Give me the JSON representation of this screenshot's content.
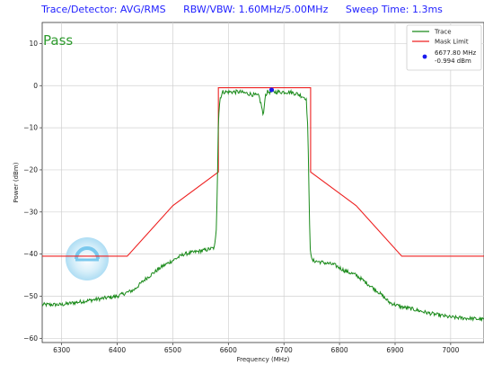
{
  "header": {
    "trace_detector": "Trace/Detector: AVG/RMS",
    "rbw_vbw": "RBW/VBW: 1.60MHz/5.00MHz",
    "sweep_time": "Sweep Time: 1.3ms"
  },
  "status": {
    "verdict": "Pass"
  },
  "colors": {
    "trace": "#1a8a1a",
    "mask": "#ee2222",
    "marker": "#1a1aee",
    "header_text": "#1f1fff",
    "pass_text": "#2e9b2e"
  },
  "chart_data": {
    "type": "line",
    "xlabel": "Frequency (MHz)",
    "ylabel": "Power (dBm)",
    "xlim": [
      6265,
      7060
    ],
    "ylim": [
      -61,
      15
    ],
    "x_ticks": [
      6300,
      6400,
      6500,
      6600,
      6700,
      6800,
      6900,
      7000
    ],
    "y_ticks": [
      10,
      0,
      -10,
      -20,
      -30,
      -40,
      -50,
      -60
    ],
    "grid": true,
    "legend_position": "top-right",
    "series": [
      {
        "name": "Trace",
        "x": [
          6265,
          6300,
          6350,
          6400,
          6430,
          6450,
          6480,
          6500,
          6520,
          6540,
          6560,
          6575,
          6578,
          6580,
          6582,
          6585,
          6590,
          6600,
          6620,
          6640,
          6655,
          6660,
          6663,
          6666,
          6670,
          6690,
          6710,
          6725,
          6740,
          6743,
          6745,
          6747,
          6750,
          6770,
          6790,
          6810,
          6830,
          6850,
          6870,
          6890,
          6910,
          6930,
          6960,
          7000,
          7060
        ],
        "y": [
          -52,
          -52,
          -51,
          -50,
          -48.5,
          -46,
          -43,
          -41.5,
          -40,
          -39.5,
          -39,
          -38.5,
          -35,
          -25,
          -8,
          -3,
          -1.5,
          -1.5,
          -1.5,
          -2,
          -2.5,
          -5,
          -7.5,
          -2.5,
          -1.5,
          -1.5,
          -1.5,
          -2,
          -3,
          -10,
          -25,
          -38,
          -41.5,
          -42,
          -42.5,
          -44,
          -45,
          -47,
          -49,
          -51.5,
          -52.5,
          -53,
          -54,
          -55,
          -55.5
        ]
      },
      {
        "name": "Mask Limit",
        "x": [
          6265,
          6418,
          6500,
          6582,
          6582,
          6748,
          6748,
          6830,
          6912,
          7060
        ],
        "y": [
          -40.5,
          -40.5,
          -28.5,
          -20.5,
          -0.5,
          -0.5,
          -20.5,
          -28.5,
          -40.5,
          -40.5
        ]
      }
    ],
    "marker": {
      "name": "6677.80 MHz\n-0.994 dBm",
      "freq": 6677.8,
      "power": -0.994,
      "label_line1": "6677.80 MHz",
      "label_line2": "-0.994 dBm"
    }
  }
}
